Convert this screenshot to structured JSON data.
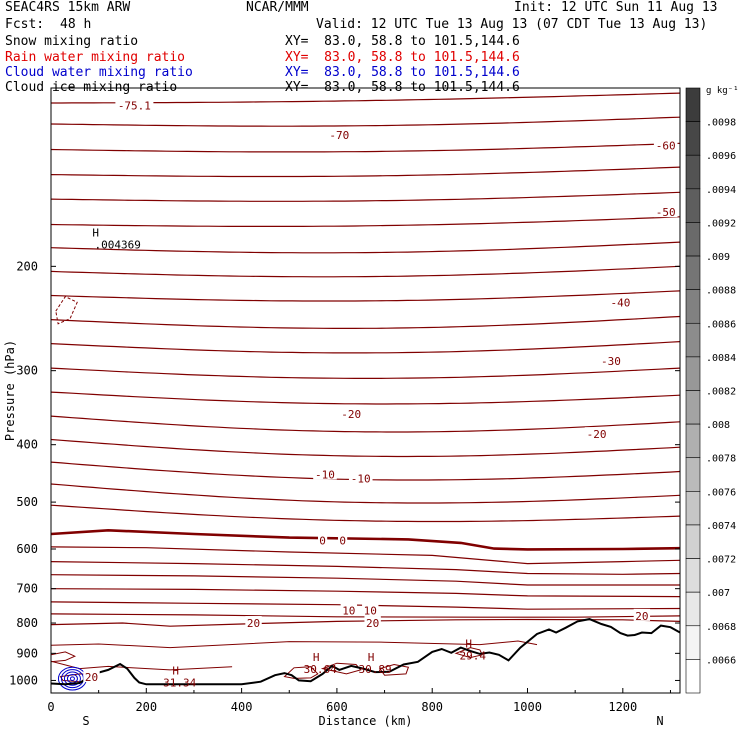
{
  "header": {
    "model": "SEAC4RS 15km ARW",
    "org": "NCAR/MMM",
    "init": "Init: 12 UTC Sun 11 Aug 13",
    "fcst_label": "Fcst:",
    "fcst_value": "48 h",
    "valid": "Valid: 12 UTC Tue 13 Aug 13 (07 CDT Tue 13 Aug 13)"
  },
  "fields": [
    {
      "name": "Snow mixing ratio",
      "xy": "XY=  83.0, 58.8 to 101.5,144.6",
      "color": "#000000"
    },
    {
      "name": "Rain water mixing ratio",
      "xy": "XY=  83.0, 58.8 to 101.5,144.6",
      "color": "#e00000"
    },
    {
      "name": "Cloud water mixing ratio",
      "xy": "XY=  83.0, 58.8 to 101.5,144.6",
      "color": "#0000cc"
    },
    {
      "name": "Cloud ice mixing ratio",
      "xy": "XY=  83.0, 58.8 to 101.5,144.6",
      "color": "#000000"
    }
  ],
  "chart_data": {
    "type": "contour cross-section",
    "xlabel": "Distance (km)",
    "ylabel": "Pressure (hPa)",
    "x_ticks": [
      0,
      200,
      400,
      600,
      800,
      1000,
      1200
    ],
    "y_ticks": [
      200,
      300,
      400,
      500,
      600,
      700,
      800,
      900,
      1000
    ],
    "xlim": [
      0,
      1320
    ],
    "ylim": [
      1050,
      100
    ],
    "y_scale": "log",
    "x_end_labels": {
      "left": "S",
      "right": "N"
    },
    "temperature_isotherms": {
      "color": "#800000",
      "labels": [
        {
          "text": "-75.1",
          "x": 175,
          "p": 107
        },
        {
          "text": "-70",
          "x": 605,
          "p": 120
        },
        {
          "text": "-60",
          "x": 1290,
          "p": 125
        },
        {
          "text": "-50",
          "x": 1290,
          "p": 162
        },
        {
          "text": "-40",
          "x": 1195,
          "p": 230
        },
        {
          "text": "-30",
          "x": 1175,
          "p": 289
        },
        {
          "text": "-20",
          "x": 630,
          "p": 355
        },
        {
          "text": "-20",
          "x": 1145,
          "p": 384
        },
        {
          "text": "-10",
          "x": 575,
          "p": 449
        },
        {
          "text": "-10",
          "x": 650,
          "p": 456
        },
        {
          "text": "0",
          "x": 570,
          "p": 580
        },
        {
          "text": "0",
          "x": 612,
          "p": 580
        },
        {
          "text": "10",
          "x": 625,
          "p": 762
        },
        {
          "text": "10",
          "x": 670,
          "p": 762
        },
        {
          "text": "20",
          "x": 425,
          "p": 800
        },
        {
          "text": "20",
          "x": 675,
          "p": 800
        },
        {
          "text": "20",
          "x": 1240,
          "p": 778
        },
        {
          "text": "20",
          "x": 85,
          "p": 987
        }
      ]
    },
    "snow_extremum": {
      "label": "H",
      "value": ".004369",
      "x": 140,
      "p": 185
    },
    "temperature_maxima": [
      {
        "label": "H",
        "value": "31.34",
        "x": 270,
        "p": 1011
      },
      {
        "label": "H",
        "value": "30.64",
        "x": 565,
        "p": 961
      },
      {
        "label": "H",
        "value": "30.89",
        "x": 680,
        "p": 961
      },
      {
        "label": "H",
        "value": "29.4",
        "x": 885,
        "p": 912
      }
    ],
    "colorbar": {
      "unit": "g kg⁻¹",
      "ticks": [
        ".0098",
        ".0096",
        ".0094",
        ".0092",
        ".009",
        ".0088",
        ".0086",
        ".0084",
        ".0082",
        ".008",
        ".0078",
        ".0076",
        ".0074",
        ".0072",
        ".007",
        ".0068",
        ".0066"
      ]
    },
    "terrain_profile": [
      [
        0,
        1012
      ],
      [
        30,
        1015
      ],
      [
        60,
        1010
      ],
      [
        90,
        975
      ],
      [
        120,
        960
      ],
      [
        145,
        938
      ],
      [
        160,
        955
      ],
      [
        175,
        990
      ],
      [
        185,
        1008
      ],
      [
        200,
        1015
      ],
      [
        300,
        1015
      ],
      [
        400,
        1015
      ],
      [
        440,
        1005
      ],
      [
        470,
        980
      ],
      [
        490,
        972
      ],
      [
        505,
        980
      ],
      [
        520,
        1000
      ],
      [
        545,
        1003
      ],
      [
        570,
        975
      ],
      [
        590,
        945
      ],
      [
        605,
        960
      ],
      [
        630,
        945
      ],
      [
        655,
        955
      ],
      [
        680,
        968
      ],
      [
        710,
        967
      ],
      [
        740,
        940
      ],
      [
        770,
        930
      ],
      [
        800,
        895
      ],
      [
        820,
        885
      ],
      [
        840,
        898
      ],
      [
        860,
        880
      ],
      [
        880,
        892
      ],
      [
        900,
        902
      ],
      [
        920,
        897
      ],
      [
        940,
        905
      ],
      [
        960,
        925
      ],
      [
        985,
        880
      ],
      [
        1020,
        835
      ],
      [
        1045,
        820
      ],
      [
        1060,
        830
      ],
      [
        1080,
        815
      ],
      [
        1105,
        795
      ],
      [
        1130,
        788
      ],
      [
        1155,
        803
      ],
      [
        1175,
        812
      ],
      [
        1195,
        832
      ],
      [
        1210,
        840
      ],
      [
        1225,
        838
      ],
      [
        1240,
        830
      ],
      [
        1260,
        832
      ],
      [
        1280,
        808
      ],
      [
        1300,
        813
      ],
      [
        1320,
        830
      ]
    ]
  }
}
